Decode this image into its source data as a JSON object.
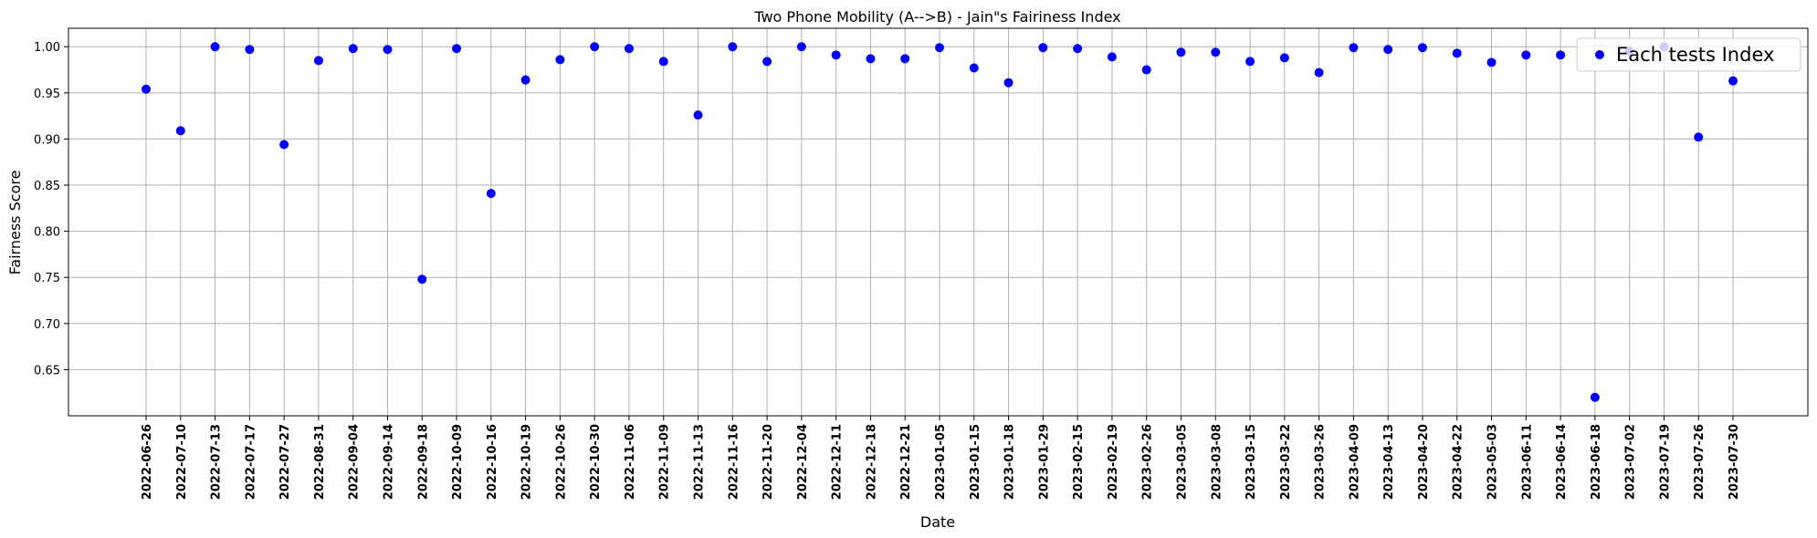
{
  "chart_data": {
    "type": "scatter",
    "title": "Two Phone Mobility (A-->B) - Jain\"s Fairiness Index",
    "xlabel": "Date",
    "ylabel": "Fairness Score",
    "ylim": [
      0.6,
      1.02
    ],
    "yticks": [
      "0.65",
      "0.70",
      "0.75",
      "0.80",
      "0.85",
      "0.90",
      "0.95",
      "1.00"
    ],
    "grid": true,
    "legend_position": "top-right",
    "marker_color": "#0000ff",
    "series": [
      {
        "name": "Each tests Index",
        "x": [
          "2022-06-26",
          "2022-07-10",
          "2022-07-13",
          "2022-07-17",
          "2022-07-27",
          "2022-08-31",
          "2022-09-04",
          "2022-09-14",
          "2022-09-18",
          "2022-10-09",
          "2022-10-16",
          "2022-10-19",
          "2022-10-26",
          "2022-10-30",
          "2022-11-06",
          "2022-11-09",
          "2022-11-13",
          "2022-11-16",
          "2022-11-20",
          "2022-12-04",
          "2022-12-11",
          "2022-12-18",
          "2022-12-21",
          "2023-01-05",
          "2023-01-15",
          "2023-01-18",
          "2023-01-29",
          "2023-02-15",
          "2023-02-19",
          "2023-02-26",
          "2023-03-05",
          "2023-03-08",
          "2023-03-15",
          "2023-03-22",
          "2023-03-26",
          "2023-04-09",
          "2023-04-13",
          "2023-04-20",
          "2023-04-22",
          "2023-05-03",
          "2023-06-11",
          "2023-06-14",
          "2023-06-18",
          "2023-07-02",
          "2023-07-19",
          "2023-07-26",
          "2023-07-30"
        ],
        "y": [
          0.954,
          0.909,
          1.0,
          0.997,
          0.894,
          0.985,
          0.998,
          0.997,
          0.748,
          0.998,
          0.841,
          0.964,
          0.986,
          1.0,
          0.998,
          0.984,
          0.926,
          1.0,
          0.984,
          1.0,
          0.991,
          0.987,
          0.987,
          0.999,
          0.977,
          0.961,
          0.999,
          0.998,
          0.989,
          0.975,
          0.994,
          0.994,
          0.984,
          0.988,
          0.972,
          0.999,
          0.997,
          0.999,
          0.993,
          0.983,
          0.991,
          0.991,
          0.62,
          0.995,
          1.0,
          0.902,
          0.963
        ]
      }
    ]
  }
}
